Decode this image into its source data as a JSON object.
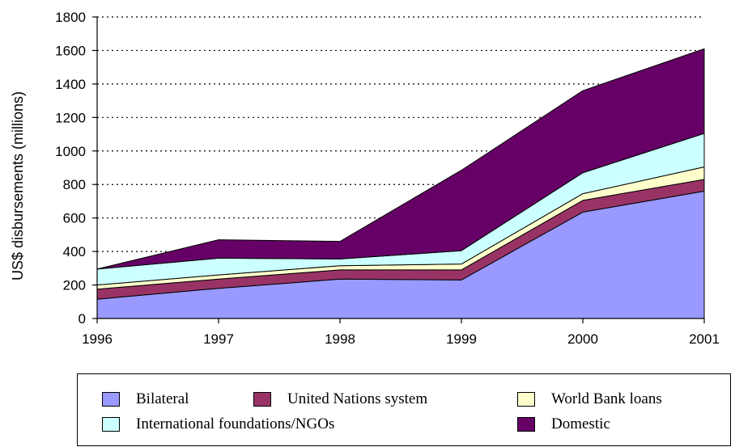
{
  "chart_data": {
    "type": "area",
    "stacked": true,
    "x": [
      "1996",
      "1997",
      "1998",
      "1999",
      "2000",
      "2001"
    ],
    "ylabel": "US$ disbursements (millions)",
    "ylim": [
      0,
      1800
    ],
    "yticks": [
      "0",
      "200",
      "400",
      "600",
      "800",
      "1000",
      "1200",
      "1400",
      "1600",
      "1800"
    ],
    "grid": "horizontal dotted",
    "legend_position": "bottom",
    "series": [
      {
        "name": "Bilateral",
        "color": "#9999ff",
        "values": [
          115,
          180,
          235,
          230,
          635,
          760
        ]
      },
      {
        "name": "United Nations system",
        "color": "#993366",
        "values": [
          60,
          55,
          55,
          60,
          70,
          70
        ]
      },
      {
        "name": "World Bank loans",
        "color": "#ffffcc",
        "values": [
          25,
          25,
          25,
          35,
          40,
          75
        ]
      },
      {
        "name": "International foundations/NGOs",
        "color": "#ccffff",
        "values": [
          95,
          100,
          40,
          80,
          125,
          200
        ]
      },
      {
        "name": "Domestic",
        "color": "#660066",
        "values": [
          0,
          110,
          105,
          480,
          490,
          505
        ]
      }
    ]
  },
  "legend": {
    "items": [
      {
        "label": "Bilateral",
        "color": "#9999ff"
      },
      {
        "label": "United Nations system",
        "color": "#993366"
      },
      {
        "label": "World Bank loans",
        "color": "#ffffcc"
      },
      {
        "label": "International foundations/NGOs",
        "color": "#ccffff"
      },
      {
        "label": "Domestic",
        "color": "#660066"
      }
    ]
  }
}
